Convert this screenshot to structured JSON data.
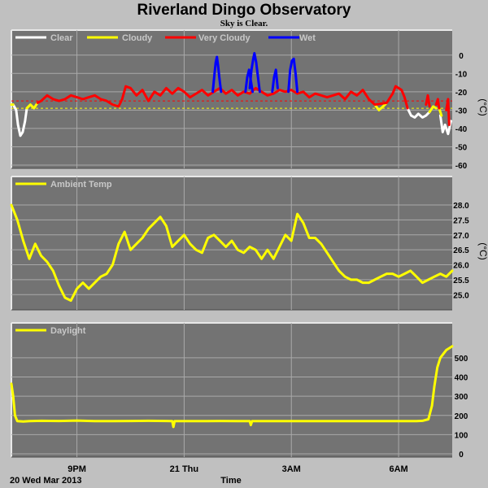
{
  "title": "Riverland Dingo Observatory",
  "subtitle": "Sky is Clear.",
  "colors": {
    "background": "#c0c0c0",
    "plot_background": "#737373",
    "grid": "#a9a9a9",
    "clear": "#ffffff",
    "cloudy": "#ffff00",
    "very_cloudy": "#ff0000",
    "wet": "#0000ff",
    "ambient": "#ffff00",
    "daylight": "#ffff00"
  },
  "x_axis": {
    "label": "Time",
    "date_label": "20 Wed Mar 2013",
    "ticks": [
      {
        "label": "9PM",
        "time": "21:00"
      },
      {
        "label": "21 Thu",
        "time": "00:00"
      },
      {
        "label": "3AM",
        "time": "03:00"
      },
      {
        "label": "6AM",
        "time": "06:00"
      }
    ],
    "start": "19:10",
    "end": "07:30"
  },
  "chart_data": [
    {
      "type": "line",
      "name": "sky",
      "legend": [
        "Clear",
        "Cloudy",
        "Very Cloudy",
        "Wet"
      ],
      "ylabel": "(°C)",
      "yticks": [
        0,
        -10,
        -20,
        -30,
        -40,
        -50,
        -60
      ],
      "ylim": [
        -60,
        3
      ],
      "thresholds": {
        "very_cloudy": -25,
        "cloudy": -29
      },
      "series": [
        {
          "name": "Clear",
          "x": [
            "19:13",
            "19:18",
            "19:21",
            "19:25",
            "19:29",
            "19:33",
            "19:36"
          ],
          "values": [
            -27,
            -30,
            -38,
            -44,
            -42,
            -36,
            -29
          ]
        },
        {
          "name": "Clear",
          "x": [
            "06:15",
            "06:21",
            "06:27",
            "06:33",
            "06:40",
            "06:46",
            "06:52"
          ],
          "values": [
            -29,
            -33,
            -34,
            -32,
            -34,
            -33,
            -31
          ]
        },
        {
          "name": "Clear",
          "x": [
            "07:10",
            "07:14",
            "07:18",
            "07:23",
            "07:28"
          ],
          "values": [
            -33,
            -42,
            -38,
            -43,
            -36
          ]
        },
        {
          "name": "Cloudy",
          "x": [
            "19:10",
            "19:13"
          ],
          "values": [
            -27,
            -27
          ]
        },
        {
          "name": "Cloudy",
          "x": [
            "19:36",
            "19:42",
            "19:48",
            "19:54"
          ],
          "values": [
            -29,
            -27,
            -29,
            -26
          ]
        },
        {
          "name": "Cloudy",
          "x": [
            "22:00",
            "22:10"
          ],
          "values": [
            -27,
            -28
          ]
        },
        {
          "name": "Cloudy",
          "x": [
            "05:20",
            "05:27",
            "05:34",
            "05:40"
          ],
          "values": [
            -27,
            -30,
            -28,
            -26
          ]
        },
        {
          "name": "Cloudy",
          "x": [
            "06:52",
            "06:58",
            "07:03"
          ],
          "values": [
            -31,
            -28,
            -29
          ]
        },
        {
          "name": "Cloudy",
          "x": [
            "07:08",
            "07:12"
          ],
          "values": [
            -29,
            -33
          ]
        },
        {
          "name": "Very Cloudy",
          "x": [
            "19:54",
            "20:00",
            "20:10",
            "20:20",
            "20:30",
            "20:40",
            "20:50",
            "21:00",
            "21:10",
            "21:20",
            "21:30",
            "21:40",
            "21:50",
            "22:00",
            "22:10",
            "22:16",
            "22:22",
            "22:30",
            "22:40",
            "22:50",
            "23:00",
            "23:10",
            "23:20",
            "23:30",
            "23:40",
            "23:50",
            "00:00",
            "00:10",
            "00:20",
            "00:30",
            "00:40",
            "00:50",
            "01:00",
            "01:10",
            "01:20",
            "01:30",
            "01:40",
            "01:50",
            "02:00",
            "02:10",
            "02:20",
            "02:30",
            "02:40",
            "02:50",
            "03:00",
            "03:10",
            "03:20",
            "03:30",
            "03:40",
            "03:50",
            "04:00",
            "04:10",
            "04:20",
            "04:30",
            "04:40",
            "04:50",
            "05:00",
            "05:10",
            "05:20",
            "05:40",
            "05:50",
            "05:55",
            "06:00",
            "06:05",
            "06:10",
            "06:15"
          ],
          "values": [
            -26,
            -25,
            -22,
            -24,
            -25,
            -24,
            -22,
            -23,
            -24,
            -23,
            -22,
            -24,
            -25,
            -27,
            -28,
            -24,
            -17,
            -18,
            -22,
            -19,
            -25,
            -20,
            -22,
            -18,
            -21,
            -18,
            -20,
            -23,
            -21,
            -19,
            -22,
            -20,
            -18,
            -21,
            -19,
            -22,
            -20,
            -21,
            -18,
            -20,
            -22,
            -21,
            -19,
            -20,
            -19,
            -21,
            -20,
            -23,
            -21,
            -22,
            -23,
            -22,
            -21,
            -24,
            -20,
            -22,
            -19,
            -24,
            -27,
            -26,
            -21,
            -17,
            -18,
            -19,
            -23,
            -29
          ]
        },
        {
          "name": "Very Cloudy",
          "x": [
            "06:46",
            "06:49",
            "06:52"
          ],
          "values": [
            -27,
            -22,
            -28
          ]
        },
        {
          "name": "Very Cloudy",
          "x": [
            "07:03",
            "07:06",
            "07:08"
          ],
          "values": [
            -27,
            -24,
            -29
          ]
        },
        {
          "name": "Very Cloudy",
          "x": [
            "07:20",
            "07:23",
            "07:25"
          ],
          "values": [
            -30,
            -24,
            -38
          ]
        },
        {
          "name": "Wet",
          "x": [
            "00:48",
            "00:51",
            "00:53",
            "00:55",
            "00:57",
            "00:59",
            "01:02"
          ],
          "values": [
            -20,
            -10,
            -4,
            -1,
            -6,
            -12,
            -20
          ]
        },
        {
          "name": "Wet",
          "x": [
            "01:43",
            "01:46",
            "01:49",
            "01:52",
            "01:55"
          ],
          "values": [
            -20,
            -12,
            -8,
            -14,
            -20
          ]
        },
        {
          "name": "Wet",
          "x": [
            "01:50",
            "01:53",
            "01:56",
            "01:58",
            "02:01",
            "02:04",
            "02:07"
          ],
          "values": [
            -18,
            -8,
            -2,
            1,
            -4,
            -12,
            -20
          ]
        },
        {
          "name": "Wet",
          "x": [
            "02:28",
            "02:31",
            "02:34",
            "02:37"
          ],
          "values": [
            -20,
            -12,
            -8,
            -18
          ]
        },
        {
          "name": "Wet",
          "x": [
            "02:55",
            "02:58",
            "03:01",
            "03:04",
            "03:07",
            "03:10"
          ],
          "values": [
            -20,
            -8,
            -3,
            -2,
            -10,
            -20
          ]
        }
      ]
    },
    {
      "type": "line",
      "name": "ambient",
      "legend": [
        "Ambient Temp"
      ],
      "ylabel": "(°C)",
      "yticks": [
        28.0,
        27.5,
        27.0,
        26.5,
        26.0,
        25.5,
        25.0
      ],
      "ylim": [
        24.6,
        28.3
      ],
      "series": [
        {
          "name": "Ambient Temp",
          "x": [
            "19:10",
            "19:20",
            "19:30",
            "19:40",
            "19:50",
            "20:00",
            "20:10",
            "20:20",
            "20:30",
            "20:40",
            "20:50",
            "21:00",
            "21:10",
            "21:20",
            "21:30",
            "21:40",
            "21:50",
            "22:00",
            "22:10",
            "22:20",
            "22:30",
            "22:40",
            "22:50",
            "23:00",
            "23:10",
            "23:20",
            "23:30",
            "23:40",
            "23:50",
            "00:00",
            "00:10",
            "00:20",
            "00:30",
            "00:40",
            "00:50",
            "01:00",
            "01:10",
            "01:20",
            "01:30",
            "01:40",
            "01:50",
            "02:00",
            "02:10",
            "02:20",
            "02:30",
            "02:40",
            "02:50",
            "03:00",
            "03:10",
            "03:20",
            "03:30",
            "03:40",
            "03:50",
            "04:00",
            "04:10",
            "04:20",
            "04:30",
            "04:40",
            "04:50",
            "05:00",
            "05:10",
            "05:20",
            "05:30",
            "05:40",
            "05:50",
            "06:00",
            "06:10",
            "06:20",
            "06:30",
            "06:40",
            "06:50",
            "07:00",
            "07:10",
            "07:20",
            "07:30"
          ],
          "values": [
            28.0,
            27.5,
            26.8,
            26.2,
            26.7,
            26.3,
            26.1,
            25.8,
            25.3,
            24.9,
            24.8,
            25.2,
            25.4,
            25.2,
            25.4,
            25.6,
            25.7,
            26.0,
            26.7,
            27.1,
            26.5,
            26.7,
            26.9,
            27.2,
            27.4,
            27.6,
            27.3,
            26.6,
            26.8,
            27.0,
            26.7,
            26.5,
            26.4,
            26.9,
            27.0,
            26.8,
            26.6,
            26.8,
            26.5,
            26.4,
            26.6,
            26.5,
            26.2,
            26.5,
            26.2,
            26.6,
            27.0,
            26.8,
            27.7,
            27.4,
            26.9,
            26.9,
            26.7,
            26.4,
            26.1,
            25.8,
            25.6,
            25.5,
            25.5,
            25.4,
            25.4,
            25.5,
            25.6,
            25.7,
            25.7,
            25.6,
            25.7,
            25.8,
            25.6,
            25.4,
            25.5,
            25.6,
            25.7,
            25.6,
            25.8
          ]
        }
      ]
    },
    {
      "type": "line",
      "name": "daylight",
      "legend": [
        "Daylight"
      ],
      "ylabel": "",
      "yticks": [
        500,
        400,
        300,
        200,
        100,
        0
      ],
      "ylim": [
        0,
        580
      ],
      "series": [
        {
          "name": "Daylight",
          "x": [
            "19:10",
            "19:13",
            "19:16",
            "19:20",
            "19:30",
            "19:40",
            "20:00",
            "20:30",
            "21:00",
            "21:30",
            "22:00",
            "22:30",
            "23:00",
            "23:30",
            "23:40",
            "23:42",
            "23:44",
            "00:00",
            "00:30",
            "01:00",
            "01:30",
            "01:50",
            "01:52",
            "01:54",
            "02:00",
            "02:30",
            "03:00",
            "03:30",
            "04:00",
            "04:30",
            "05:00",
            "05:30",
            "06:00",
            "06:30",
            "06:40",
            "06:50",
            "06:56",
            "07:00",
            "07:05",
            "07:10",
            "07:15",
            "07:20",
            "07:25",
            "07:30"
          ],
          "values": [
            365,
            300,
            200,
            170,
            168,
            170,
            172,
            171,
            173,
            170,
            170,
            171,
            172,
            171,
            170,
            140,
            170,
            170,
            170,
            171,
            170,
            170,
            150,
            170,
            170,
            170,
            170,
            170,
            170,
            170,
            170,
            170,
            170,
            170,
            172,
            180,
            250,
            350,
            450,
            500,
            520,
            540,
            550,
            560
          ]
        }
      ]
    }
  ]
}
